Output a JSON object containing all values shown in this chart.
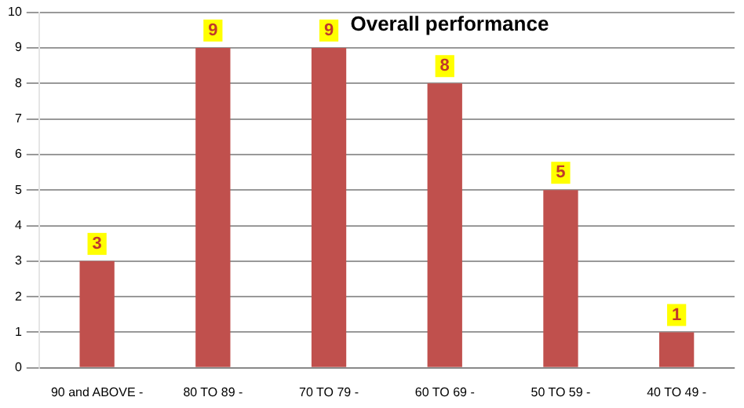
{
  "chart_data": {
    "type": "bar",
    "title": "Overall performance",
    "categories": [
      "90 and ABOVE -",
      "80 TO 89 -",
      "70 TO 79 -",
      "60 TO 69 -",
      "50 TO 59 -",
      "40 TO 49 -"
    ],
    "values": [
      3,
      9,
      9,
      8,
      5,
      1
    ],
    "color": "#c0504d",
    "ylim": [
      0,
      10
    ],
    "yticks": [
      0,
      1,
      2,
      3,
      4,
      5,
      6,
      7,
      8,
      9,
      10
    ],
    "grid": "y",
    "data_labels": true,
    "legend": false
  }
}
